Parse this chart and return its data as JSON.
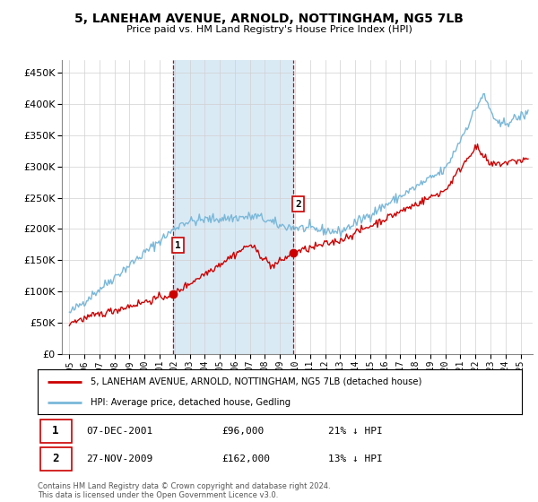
{
  "title": "5, LANEHAM AVENUE, ARNOLD, NOTTINGHAM, NG5 7LB",
  "subtitle": "Price paid vs. HM Land Registry's House Price Index (HPI)",
  "legend_line1": "5, LANEHAM AVENUE, ARNOLD, NOTTINGHAM, NG5 7LB (detached house)",
  "legend_line2": "HPI: Average price, detached house, Gedling",
  "annotation1_date": "07-DEC-2001",
  "annotation1_price": "£96,000",
  "annotation1_hpi": "21% ↓ HPI",
  "annotation2_date": "27-NOV-2009",
  "annotation2_price": "£162,000",
  "annotation2_hpi": "13% ↓ HPI",
  "footnote": "Contains HM Land Registry data © Crown copyright and database right 2024.\nThis data is licensed under the Open Government Licence v3.0.",
  "sale1_x": 2001.92,
  "sale1_y": 96000,
  "sale2_x": 2009.9,
  "sale2_y": 162000,
  "hpi_color": "#7ab8d9",
  "price_color": "#cc0000",
  "vline_color": "#cc0000",
  "shade_color": "#daeaf5",
  "ylim": [
    0,
    470000
  ],
  "yticks": [
    0,
    50000,
    100000,
    150000,
    200000,
    250000,
    300000,
    350000,
    400000,
    450000
  ],
  "xlim_start": 1994.5,
  "xlim_end": 2025.8,
  "xtick_years": [
    1995,
    1996,
    1997,
    1998,
    1999,
    2000,
    2001,
    2002,
    2003,
    2004,
    2005,
    2006,
    2007,
    2008,
    2009,
    2010,
    2011,
    2012,
    2013,
    2014,
    2015,
    2016,
    2017,
    2018,
    2019,
    2020,
    2021,
    2022,
    2023,
    2024,
    2025
  ]
}
